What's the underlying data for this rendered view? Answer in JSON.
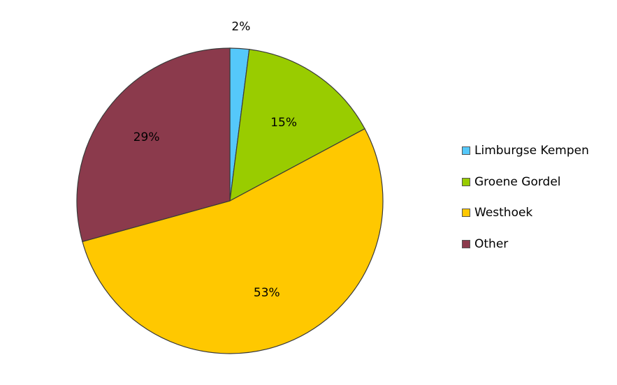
{
  "chart_data": {
    "type": "pie",
    "categories": [
      "Limburgse Kempen",
      "Groene Gordel",
      "Westhoek",
      "Other"
    ],
    "values": [
      2,
      15,
      53,
      29
    ],
    "data_labels": [
      "2%",
      "15%",
      "53%",
      "29%"
    ],
    "colors": [
      "#55C8FA",
      "#99CC00",
      "#FFC800",
      "#8B3A4C"
    ],
    "legend": "right",
    "start_angle": "12 o'clock",
    "direction": "clockwise"
  }
}
